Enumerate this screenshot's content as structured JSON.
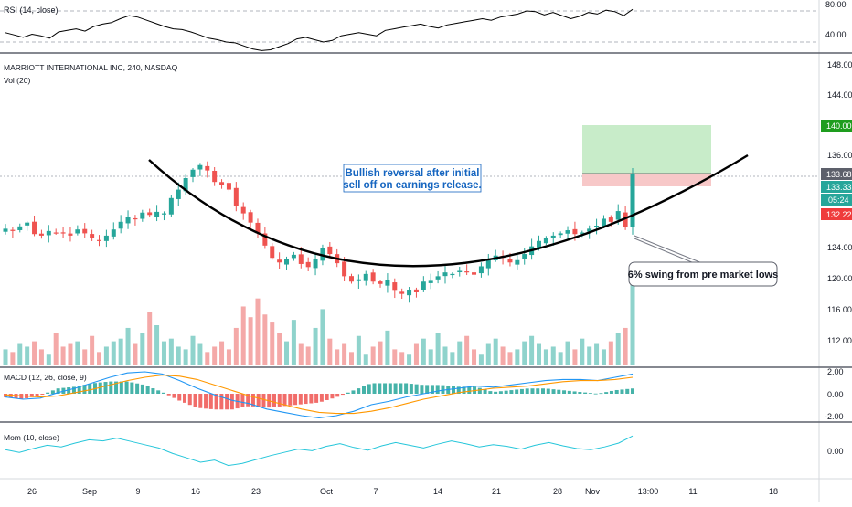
{
  "colors": {
    "up": "#26a69a",
    "down": "#ef5350",
    "up_volume": "#8fd3cc",
    "down_volume": "#f4a9a8",
    "rsi_line": "#000000",
    "macd_line": "#2196f3",
    "signal_line": "#ff9800",
    "momentum_line": "#26c6da",
    "curve": "#000000",
    "target_zone": "#c8ecc9",
    "stop_zone": "#f7c8c8",
    "callout_text": "#1565c0",
    "badge_green": "#26a69a",
    "badge_darkgreen": "#1e9d1e",
    "badge_red": "#ef3b3b",
    "badge_gray": "#5d606b"
  },
  "rsi_panel": {
    "label": "RSI (14, close)",
    "levels": [
      "80.00",
      "40.00"
    ]
  },
  "main_panel": {
    "title": "MARRIOTT INTERNATIONAL INC, 240, NASDAQ",
    "volume_label": "Vol (20)",
    "price_ticks": [
      "148.00",
      "144.00",
      "140.00",
      "136.00",
      "133.68",
      "133.33",
      "05:24",
      "132.22",
      "124.00",
      "120.00",
      "116.00",
      "112.00"
    ],
    "badges": {
      "target": "140.00",
      "last": "133.68",
      "entry": "133.33",
      "countdown": "05:24",
      "stop": "132.22"
    }
  },
  "annotations": {
    "callout_line1": "Bullish reversal after initial",
    "callout_line2": "sell off on earnings release.",
    "swing_label": "6% swing from pre market lows"
  },
  "macd_panel": {
    "label": "MACD (12, 26, close, 9)",
    "levels": [
      "2.00",
      "0.00",
      "-2.00"
    ]
  },
  "mom_panel": {
    "label": "Mom (10, close)",
    "levels": [
      "0.00"
    ]
  },
  "time_axis": [
    "26",
    "Sep",
    "9",
    "16",
    "23",
    "Oct",
    "7",
    "14",
    "21",
    "28",
    "Nov",
    "13:00",
    "11",
    "18"
  ],
  "chart_data": {
    "type": "candlestick",
    "title": "MARRIOTT INTERNATIONAL INC, 240, NASDAQ",
    "ylim": [
      108,
      150
    ],
    "price_levels": {
      "target": 140.0,
      "last": 133.68,
      "entry": 133.33,
      "stop": 132.22
    },
    "closes_approx": [
      126.5,
      126.2,
      126.8,
      127.3,
      125.8,
      125.6,
      126.2,
      126.0,
      125.9,
      125.6,
      126.4,
      125.9,
      125.3,
      124.9,
      125.6,
      126.4,
      127.4,
      128.0,
      127.8,
      128.6,
      128.3,
      128.7,
      128.5,
      130.5,
      131.6,
      133.1,
      134.2,
      134.8,
      134.1,
      132.6,
      132.2,
      131.6,
      129.5,
      128.5,
      127.3,
      125.9,
      124.3,
      122.7,
      122.1,
      122.6,
      123.1,
      121.9,
      121.5,
      122.6,
      124.0,
      123.2,
      122.0,
      120.3,
      119.6,
      119.9,
      120.6,
      119.6,
      119.3,
      119.8,
      118.4,
      118.0,
      118.5,
      118.2,
      119.6,
      119.7,
      120.3,
      120.8,
      120.6,
      121.0,
      120.9,
      120.5,
      121.6,
      122.4,
      123.0,
      122.7,
      122.1,
      122.4,
      123.2,
      124.2,
      124.9,
      125.3,
      125.6,
      125.9,
      126.3,
      125.8,
      126.0,
      126.5,
      126.9,
      127.8,
      127.4,
      128.8,
      126.7,
      133.68
    ],
    "volume_approx": [
      6,
      5,
      8,
      7,
      9,
      6,
      4,
      12,
      7,
      8,
      9,
      6,
      11,
      5,
      7,
      9,
      10,
      14,
      8,
      12,
      20,
      15,
      9,
      10,
      7,
      6,
      11,
      8,
      5,
      7,
      9,
      6,
      14,
      22,
      18,
      25,
      19,
      16,
      12,
      9,
      17,
      8,
      7,
      14,
      21,
      10,
      6,
      8,
      5,
      11,
      4,
      7,
      9,
      13,
      6,
      5,
      4,
      8,
      10,
      6,
      12,
      7,
      5,
      9,
      11,
      6,
      4,
      8,
      10,
      7,
      5,
      6,
      9,
      11,
      8,
      6,
      7,
      5,
      9,
      6,
      10,
      7,
      8,
      6,
      9,
      12,
      14,
      30
    ],
    "rsi": [
      52,
      49,
      46,
      50,
      48,
      45,
      53,
      55,
      57,
      54,
      60,
      63,
      65,
      70,
      74,
      72,
      68,
      64,
      60,
      57,
      56,
      53,
      49,
      45,
      43,
      40,
      39,
      35,
      31,
      29,
      30,
      34,
      38,
      44,
      46,
      43,
      40,
      42,
      48,
      50,
      52,
      50,
      48,
      55,
      57,
      59,
      61,
      63,
      60,
      58,
      62,
      64,
      66,
      68,
      70,
      68,
      72,
      74,
      76,
      80,
      79,
      75,
      78,
      74,
      70,
      73,
      78,
      76,
      81,
      79,
      74,
      82
    ],
    "macd": [
      -0.3,
      -0.5,
      -0.4,
      0.1,
      0.5,
      1.0,
      1.5,
      1.9,
      2.0,
      1.8,
      1.2,
      0.5,
      -0.1,
      -0.6,
      -0.9,
      -1.4,
      -1.7,
      -2.0,
      -2.2,
      -2.0,
      -1.6,
      -1.0,
      -0.7,
      -0.3,
      0.0,
      0.3,
      0.5,
      0.7,
      0.6,
      0.8,
      1.0,
      1.2,
      1.3,
      1.3,
      1.2,
      1.5,
      1.8
    ],
    "signal": [
      -0.1,
      -0.2,
      -0.3,
      -0.2,
      0.1,
      0.4,
      0.8,
      1.2,
      1.5,
      1.7,
      1.6,
      1.3,
      0.8,
      0.3,
      -0.2,
      -0.6,
      -1.0,
      -1.4,
      -1.7,
      -1.8,
      -1.8,
      -1.6,
      -1.3,
      -0.9,
      -0.5,
      -0.2,
      0.1,
      0.3,
      0.5,
      0.6,
      0.7,
      0.9,
      1.1,
      1.2,
      1.2,
      1.3,
      1.5
    ],
    "momentum": [
      0.3,
      -0.2,
      0.5,
      1.1,
      0.8,
      1.5,
      2.1,
      1.9,
      2.4,
      1.8,
      1.2,
      0.6,
      -0.4,
      -1.2,
      -2.0,
      -1.6,
      -2.6,
      -2.2,
      -1.5,
      -0.8,
      -0.2,
      0.4,
      0.1,
      0.9,
      1.4,
      0.7,
      0.2,
      1.0,
      1.6,
      1.1,
      0.6,
      1.3,
      1.9,
      1.4,
      0.8,
      1.2,
      0.9,
      0.4,
      1.1,
      1.6,
      1.0,
      0.5,
      0.3,
      0.8,
      1.5,
      2.8
    ]
  }
}
